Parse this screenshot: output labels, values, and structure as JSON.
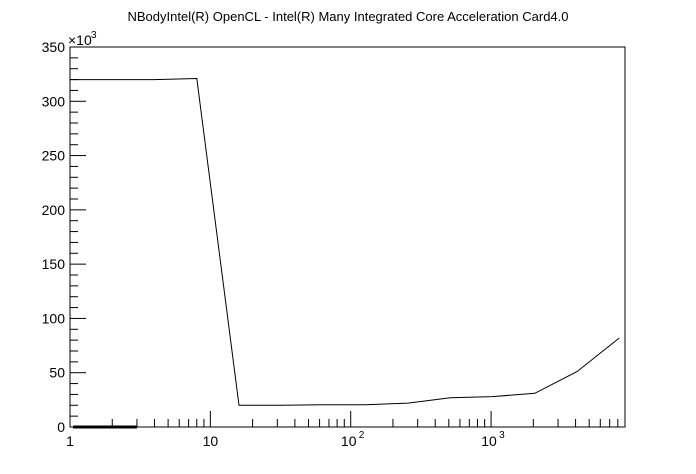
{
  "chart_data": {
    "type": "line",
    "title": "NBodyIntel(R) OpenCL - Intel(R) Many Integrated Core Acceleration Card4.0",
    "xlabel": "",
    "ylabel": "",
    "x_scale": "log",
    "xlim": [
      1,
      9000
    ],
    "ylim": [
      0,
      350000
    ],
    "y_multiplier_label": "×10",
    "y_multiplier_exp": "3",
    "x_ticks": [
      {
        "value": 1,
        "label": "1",
        "exp": ""
      },
      {
        "value": 10,
        "label": "10",
        "exp": ""
      },
      {
        "value": 100,
        "label": "10",
        "exp": "2"
      },
      {
        "value": 1000,
        "label": "10",
        "exp": "3"
      }
    ],
    "y_ticks": [
      {
        "value": 0,
        "label": "0"
      },
      {
        "value": 50000,
        "label": "50"
      },
      {
        "value": 100000,
        "label": "100"
      },
      {
        "value": 150000,
        "label": "150"
      },
      {
        "value": 200000,
        "label": "200"
      },
      {
        "value": 250000,
        "label": "250"
      },
      {
        "value": 300000,
        "label": "300"
      },
      {
        "value": 350000,
        "label": "350"
      }
    ],
    "series": [
      {
        "x": [
          1,
          2,
          4,
          8,
          16,
          32,
          64,
          128,
          256,
          512,
          1024,
          2048,
          4096,
          8192
        ],
        "y": [
          320000,
          320000,
          320000,
          321000,
          20000,
          20000,
          20500,
          20500,
          22000,
          27000,
          28000,
          31000,
          51000,
          82000
        ]
      }
    ],
    "thick_segment": {
      "x": [
        1.05,
        3.0
      ],
      "y": [
        0,
        0
      ]
    }
  }
}
